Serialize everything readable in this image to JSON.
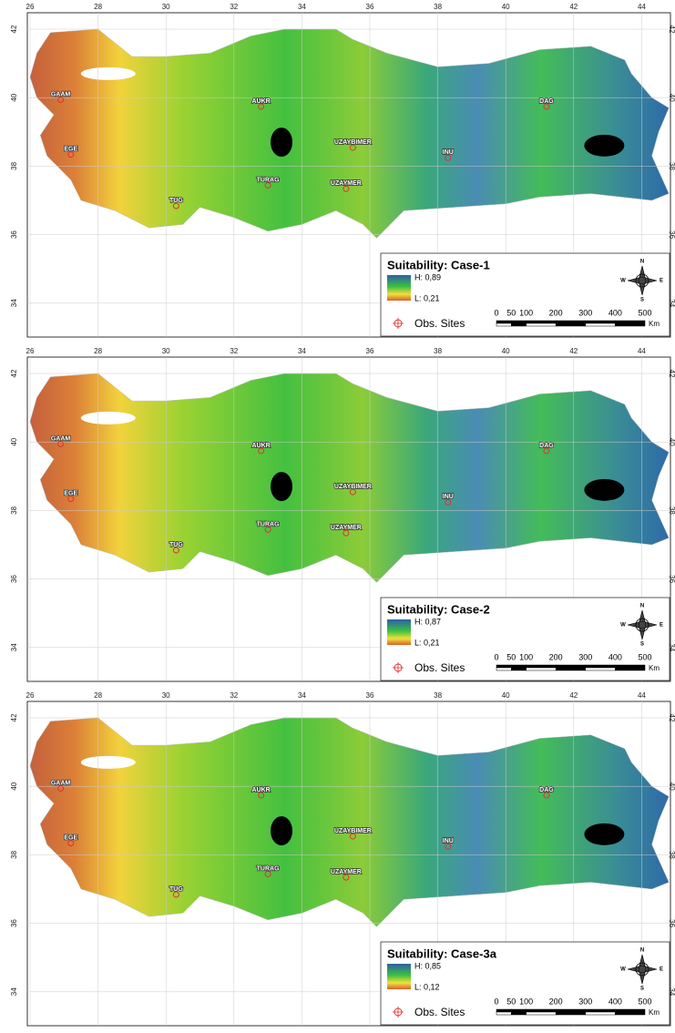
{
  "lon_ticks": [
    26,
    28,
    30,
    32,
    34,
    36,
    38,
    40,
    42,
    44
  ],
  "lat_ticks": [
    34,
    36,
    38,
    40,
    42
  ],
  "sites": [
    "GAAM",
    "AUKR",
    "DAG",
    "EGE",
    "UZAYBIMER",
    "INU",
    "TURAG",
    "UZAYMER",
    "TUG"
  ],
  "panels": [
    {
      "title": "Suitability: Case-1",
      "high": "H: 0,89",
      "low": "L: 0,21"
    },
    {
      "title": "Suitability: Case-2",
      "high": "H: 0,87",
      "low": "L: 0,21"
    },
    {
      "title": "Suitability: Case-3a",
      "high": "H: 0,85",
      "low": "L: 0,12"
    }
  ],
  "legend_sites": "Obs. Sites",
  "scale_labels": [
    0,
    50,
    100,
    200,
    300,
    400,
    500
  ],
  "scale_unit": "Km",
  "compass": {
    "n": "N",
    "s": "S",
    "e": "E",
    "w": "W"
  }
}
